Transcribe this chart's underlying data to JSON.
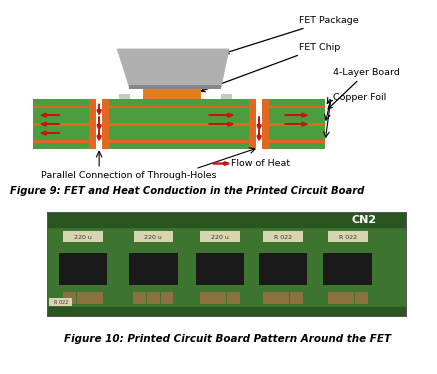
{
  "bg_color": "#ffffff",
  "fig9_caption": "Figure 9: FET and Heat Conduction in the Printed Circuit Board",
  "fig10_caption": "Figure 10: Printed Circuit Board Pattern Around the FET",
  "green_color": "#4a9e3f",
  "orange_color": "#e06820",
  "gray_pkg": "#b0b0b0",
  "gray_pkg_dark": "#888888",
  "gray_base": "#d0d0d0",
  "red_arrow": "#cc1111",
  "black": "#000000",
  "white": "#ffffff",
  "fet_orange": "#e08020",
  "light_gray": "#c8c8c8",
  "labels": {
    "fet_package": "FET Package",
    "fet_chip": "FET Chip",
    "layer_board": "4-Layer Board",
    "copper_foil": "Copper Foil",
    "flow_of_heat": "Flow of Heat",
    "through_holes": "Parallel Connection of Through-Holes"
  },
  "pcb_green": "#3d7530",
  "pcb_dark": "#2a5520",
  "pcb_mid": "#4a8c38",
  "smd_black": "#1a1a1a",
  "inductor_cream": "#d8d4b0",
  "pcb_border": "#555555"
}
